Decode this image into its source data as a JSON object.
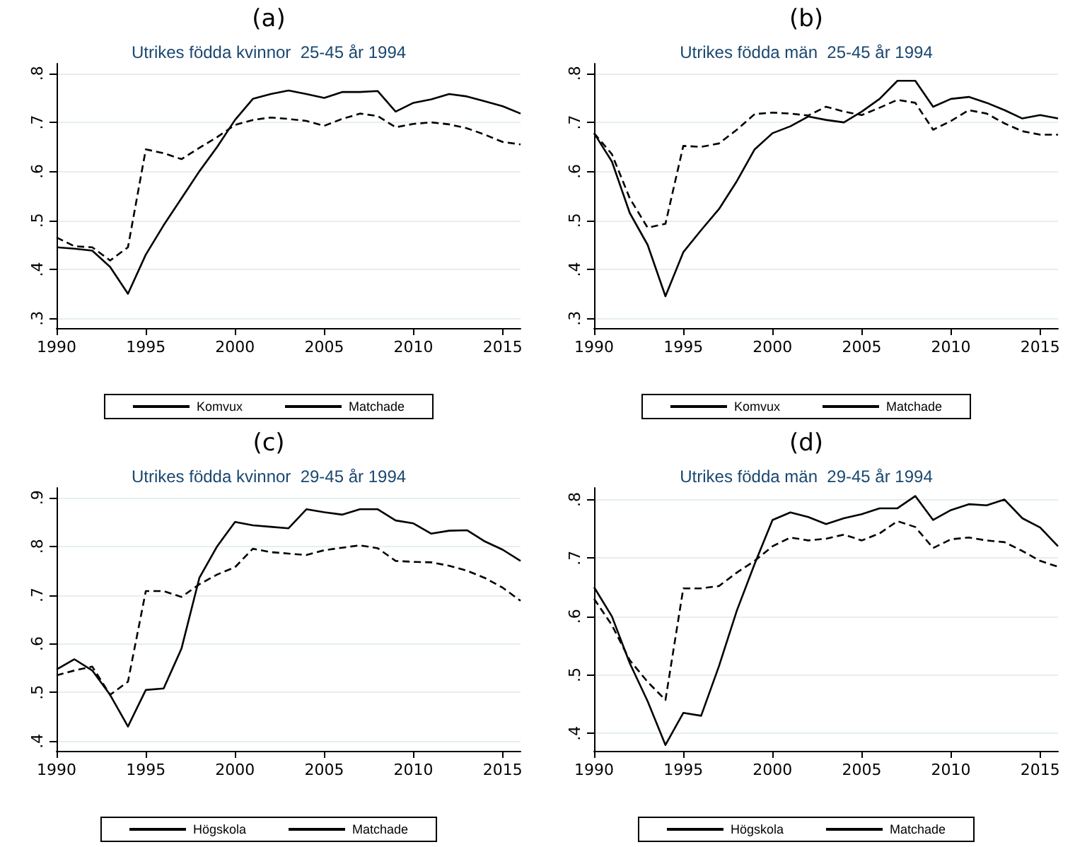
{
  "chart_data": [
    {
      "type": "line",
      "title": "(a)",
      "subtitle": "Utrikes födda kvinnor  25-45 år 1994",
      "x": [
        1990,
        1991,
        1992,
        1993,
        1994,
        1995,
        1996,
        1997,
        1998,
        1999,
        2000,
        2001,
        2002,
        2003,
        2004,
        2005,
        2006,
        2007,
        2008,
        2009,
        2010,
        2011,
        2012,
        2013,
        2014,
        2015,
        2016
      ],
      "series": [
        {
          "name": "Komvux",
          "color": "#000000",
          "line_style": "solid",
          "values": [
            0.445,
            0.442,
            0.438,
            0.405,
            0.35,
            0.43,
            0.49,
            0.545,
            0.6,
            0.65,
            0.705,
            0.748,
            0.758,
            0.765,
            0.758,
            0.75,
            0.762,
            0.762,
            0.764,
            0.722,
            0.74,
            0.747,
            0.758,
            0.753,
            0.743,
            0.733,
            0.718
          ]
        },
        {
          "name": "Matchade",
          "color": "#000000",
          "line_style": "dashed",
          "values": [
            0.465,
            0.447,
            0.445,
            0.418,
            0.445,
            0.645,
            0.637,
            0.625,
            0.648,
            0.67,
            0.695,
            0.705,
            0.71,
            0.707,
            0.703,
            0.693,
            0.707,
            0.718,
            0.713,
            0.69,
            0.697,
            0.7,
            0.696,
            0.688,
            0.675,
            0.66,
            0.655
          ]
        }
      ],
      "xlim": [
        1990,
        2016
      ],
      "xticks": [
        1990,
        1995,
        2000,
        2005,
        2010,
        2015
      ],
      "ylim": [
        0.28,
        0.82
      ],
      "yticks": [
        {
          "value": 0.3,
          "label": ".3"
        },
        {
          "value": 0.4,
          "label": ".4"
        },
        {
          "value": 0.5,
          "label": ".5"
        },
        {
          "value": 0.6,
          "label": ".6"
        },
        {
          "value": 0.7,
          "label": ".7"
        },
        {
          "value": 0.8,
          "label": ".8"
        }
      ],
      "grid": "y",
      "legend": "bottom"
    },
    {
      "type": "line",
      "title": "(b)",
      "subtitle": "Utrikes födda män  25-45 år 1994",
      "x": [
        1990,
        1991,
        1992,
        1993,
        1994,
        1995,
        1996,
        1997,
        1998,
        1999,
        2000,
        2001,
        2002,
        2003,
        2004,
        2005,
        2006,
        2007,
        2008,
        2009,
        2010,
        2011,
        2012,
        2013,
        2014,
        2015,
        2016
      ],
      "series": [
        {
          "name": "Komvux",
          "color": "#000000",
          "line_style": "solid",
          "values": [
            0.678,
            0.62,
            0.515,
            0.45,
            0.345,
            0.435,
            0.48,
            0.523,
            0.58,
            0.645,
            0.678,
            0.692,
            0.712,
            0.705,
            0.7,
            0.722,
            0.748,
            0.785,
            0.785,
            0.732,
            0.748,
            0.752,
            0.74,
            0.725,
            0.708,
            0.715,
            0.708
          ]
        },
        {
          "name": "Matchade",
          "color": "#000000",
          "line_style": "dashed",
          "values": [
            0.678,
            0.635,
            0.545,
            0.485,
            0.493,
            0.652,
            0.65,
            0.657,
            0.685,
            0.717,
            0.72,
            0.718,
            0.714,
            0.732,
            0.722,
            0.715,
            0.73,
            0.746,
            0.74,
            0.685,
            0.703,
            0.725,
            0.718,
            0.698,
            0.682,
            0.675,
            0.675
          ]
        }
      ],
      "xlim": [
        1990,
        2016
      ],
      "xticks": [
        1990,
        1995,
        2000,
        2005,
        2010,
        2015
      ],
      "ylim": [
        0.28,
        0.82
      ],
      "yticks": [
        {
          "value": 0.3,
          "label": ".3"
        },
        {
          "value": 0.4,
          "label": ".4"
        },
        {
          "value": 0.5,
          "label": ".5"
        },
        {
          "value": 0.6,
          "label": ".6"
        },
        {
          "value": 0.7,
          "label": ".7"
        },
        {
          "value": 0.8,
          "label": ".8"
        }
      ],
      "grid": "y",
      "legend": "bottom"
    },
    {
      "type": "line",
      "title": "(c)",
      "subtitle": "Utrikes födda kvinnor  29-45 år 1994",
      "x": [
        1990,
        1991,
        1992,
        1993,
        1994,
        1995,
        1996,
        1997,
        1998,
        1999,
        2000,
        2001,
        2002,
        2003,
        2004,
        2005,
        2006,
        2007,
        2008,
        2009,
        2010,
        2011,
        2012,
        2013,
        2014,
        2015,
        2016
      ],
      "series": [
        {
          "name": "Högskola",
          "color": "#000000",
          "line_style": "solid",
          "values": [
            0.547,
            0.568,
            0.545,
            0.495,
            0.43,
            0.505,
            0.508,
            0.59,
            0.735,
            0.8,
            0.85,
            0.843,
            0.84,
            0.837,
            0.876,
            0.87,
            0.865,
            0.876,
            0.876,
            0.853,
            0.847,
            0.826,
            0.832,
            0.833,
            0.81,
            0.793,
            0.77
          ]
        },
        {
          "name": "Matchade",
          "color": "#000000",
          "line_style": "dashed",
          "values": [
            0.535,
            0.545,
            0.553,
            0.495,
            0.522,
            0.708,
            0.708,
            0.696,
            0.722,
            0.742,
            0.757,
            0.795,
            0.788,
            0.785,
            0.782,
            0.792,
            0.797,
            0.802,
            0.796,
            0.77,
            0.768,
            0.767,
            0.76,
            0.75,
            0.735,
            0.715,
            0.688
          ]
        }
      ],
      "xlim": [
        1990,
        2016
      ],
      "xticks": [
        1990,
        1995,
        2000,
        2005,
        2010,
        2015
      ],
      "ylim": [
        0.38,
        0.92
      ],
      "yticks": [
        {
          "value": 0.4,
          "label": ".4"
        },
        {
          "value": 0.5,
          "label": ".5"
        },
        {
          "value": 0.6,
          "label": ".6"
        },
        {
          "value": 0.7,
          "label": ".7"
        },
        {
          "value": 0.8,
          "label": ".8"
        },
        {
          "value": 0.9,
          "label": ".9"
        }
      ],
      "grid": "y",
      "legend": "bottom"
    },
    {
      "type": "line",
      "title": "(d)",
      "subtitle": "Utrikes födda män  29-45 år 1994",
      "x": [
        1990,
        1991,
        1992,
        1993,
        1994,
        1995,
        1996,
        1997,
        1998,
        1999,
        2000,
        2001,
        2002,
        2003,
        2004,
        2005,
        2006,
        2007,
        2008,
        2009,
        2010,
        2011,
        2012,
        2013,
        2014,
        2015,
        2016
      ],
      "series": [
        {
          "name": "Högskola",
          "color": "#000000",
          "line_style": "solid",
          "values": [
            0.65,
            0.6,
            0.52,
            0.455,
            0.38,
            0.435,
            0.43,
            0.515,
            0.61,
            0.69,
            0.765,
            0.778,
            0.77,
            0.758,
            0.768,
            0.775,
            0.785,
            0.785,
            0.806,
            0.765,
            0.782,
            0.792,
            0.79,
            0.8,
            0.768,
            0.752,
            0.72
          ]
        },
        {
          "name": "Matchade",
          "color": "#000000",
          "line_style": "dashed",
          "values": [
            0.63,
            0.585,
            0.525,
            0.488,
            0.457,
            0.648,
            0.648,
            0.652,
            0.675,
            0.695,
            0.72,
            0.735,
            0.73,
            0.733,
            0.74,
            0.73,
            0.742,
            0.763,
            0.753,
            0.717,
            0.732,
            0.735,
            0.73,
            0.727,
            0.712,
            0.695,
            0.685
          ]
        }
      ],
      "xlim": [
        1990,
        2016
      ],
      "xticks": [
        1990,
        1995,
        2000,
        2005,
        2010,
        2015
      ],
      "ylim": [
        0.37,
        0.82
      ],
      "yticks": [
        {
          "value": 0.4,
          "label": ".4"
        },
        {
          "value": 0.5,
          "label": ".5"
        },
        {
          "value": 0.6,
          "label": ".6"
        },
        {
          "value": 0.7,
          "label": ".7"
        },
        {
          "value": 0.8,
          "label": ".8"
        }
      ],
      "grid": "y",
      "legend": "bottom"
    }
  ]
}
